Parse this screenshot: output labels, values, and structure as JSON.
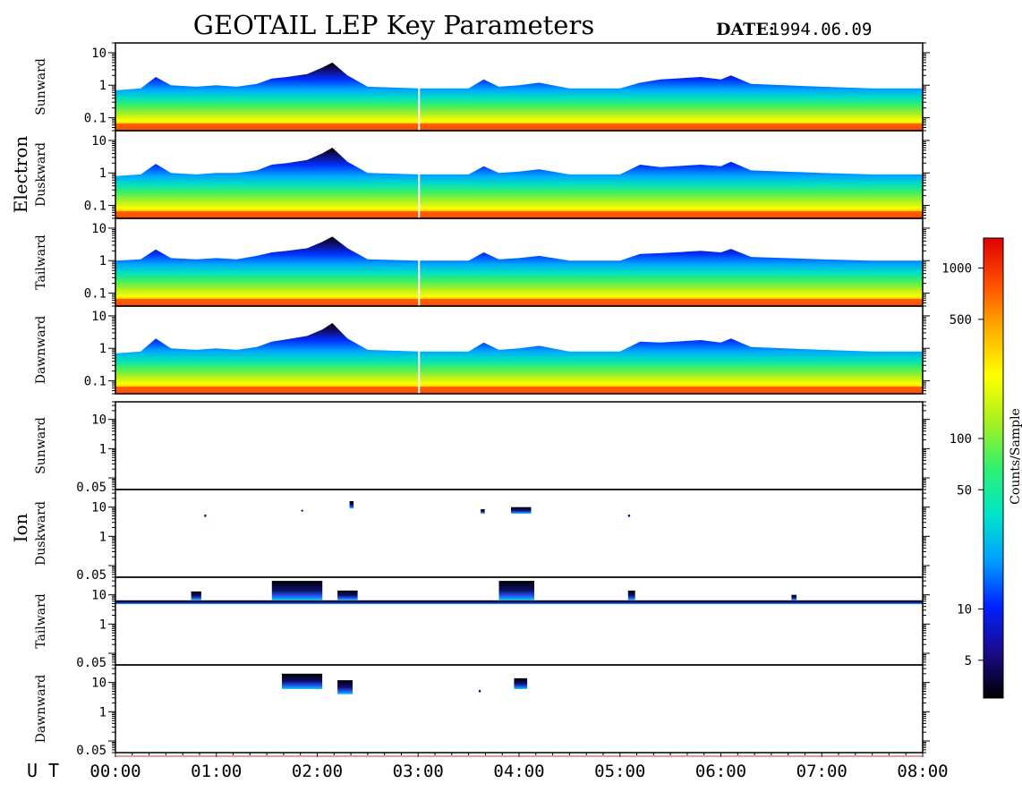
{
  "title": "GEOTAIL LEP Key Parameters",
  "date": {
    "label": "DATE:",
    "value": "1994.06.09"
  },
  "colorbar": {
    "label": "Counts/Sample",
    "ticks": [
      "1000",
      "500",
      "100",
      "50",
      "10",
      "5"
    ],
    "tick_values": [
      1000,
      500,
      100,
      50,
      10,
      5
    ],
    "range": [
      3,
      1500
    ],
    "scale": "log",
    "colors": [
      "#000000",
      "#1a0a8c",
      "#0022ff",
      "#00a0ff",
      "#00e6c8",
      "#30f070",
      "#a8f020",
      "#ffff00",
      "#ffb000",
      "#ff5000",
      "#e00000"
    ]
  },
  "xaxis": {
    "label": "U T",
    "ticks": [
      "00:00",
      "01:00",
      "02:00",
      "03:00",
      "04:00",
      "05:00",
      "06:00",
      "07:00",
      "08:00"
    ],
    "range_hours": [
      0,
      8
    ]
  },
  "groups": [
    {
      "name": "Electron"
    },
    {
      "name": "Ion"
    }
  ],
  "chart_data": [
    {
      "type": "heatmap",
      "group": "Electron",
      "name": "Sunward",
      "ylabels": [
        "10",
        "1",
        "0.1"
      ],
      "yticks": [
        10,
        1,
        0.1
      ],
      "ylim": [
        0.04,
        20
      ],
      "yscale": "log",
      "envelope_hours": [
        0,
        0.25,
        0.4,
        0.55,
        0.8,
        1.0,
        1.2,
        1.4,
        1.55,
        1.7,
        1.9,
        2.05,
        2.15,
        2.3,
        2.5,
        3.0,
        3.15,
        3.5,
        3.65,
        3.8,
        4.0,
        4.2,
        4.5,
        5.0,
        5.2,
        5.4,
        5.8,
        6.0,
        6.1,
        6.3,
        7.0,
        7.5,
        8.0
      ],
      "envelope_upper": [
        0.7,
        0.8,
        1.8,
        1.0,
        0.9,
        1.0,
        0.9,
        1.1,
        1.6,
        1.8,
        2.2,
        3.5,
        5.0,
        2.0,
        0.9,
        0.8,
        0.8,
        0.8,
        1.5,
        0.9,
        1.0,
        1.2,
        0.8,
        0.8,
        1.2,
        1.5,
        1.8,
        1.5,
        2.0,
        1.1,
        0.9,
        0.8,
        0.8
      ]
    },
    {
      "type": "heatmap",
      "group": "Electron",
      "name": "Duskward",
      "ylabels": [
        "10",
        "1",
        "0.1"
      ],
      "yticks": [
        10,
        1,
        0.1
      ],
      "ylim": [
        0.04,
        20
      ],
      "yscale": "log",
      "envelope_hours": [
        0,
        0.25,
        0.4,
        0.55,
        0.8,
        1.0,
        1.2,
        1.4,
        1.55,
        1.7,
        1.9,
        2.05,
        2.15,
        2.3,
        2.5,
        3.0,
        3.15,
        3.5,
        3.65,
        3.8,
        4.0,
        4.2,
        4.5,
        5.0,
        5.2,
        5.4,
        5.8,
        6.0,
        6.1,
        6.3,
        7.0,
        7.5,
        8.0
      ],
      "envelope_upper": [
        0.8,
        0.9,
        1.9,
        1.0,
        0.9,
        1.0,
        1.0,
        1.2,
        1.8,
        2.0,
        2.5,
        4.0,
        6.0,
        2.2,
        1.0,
        0.9,
        0.9,
        0.9,
        1.6,
        1.0,
        1.1,
        1.3,
        0.9,
        0.9,
        1.8,
        1.5,
        1.8,
        1.6,
        2.2,
        1.2,
        1.0,
        0.9,
        0.9
      ]
    },
    {
      "type": "heatmap",
      "group": "Electron",
      "name": "Tailward",
      "ylabels": [
        "10",
        "1",
        "0.1"
      ],
      "yticks": [
        10,
        1,
        0.1
      ],
      "ylim": [
        0.04,
        20
      ],
      "yscale": "log",
      "envelope_hours": [
        0,
        0.25,
        0.4,
        0.55,
        0.8,
        1.0,
        1.2,
        1.4,
        1.55,
        1.7,
        1.9,
        2.05,
        2.15,
        2.3,
        2.5,
        3.0,
        3.15,
        3.5,
        3.65,
        3.8,
        4.0,
        4.2,
        4.5,
        5.0,
        5.2,
        5.4,
        5.8,
        6.0,
        6.1,
        6.3,
        7.0,
        7.5,
        8.0
      ],
      "envelope_upper": [
        1.0,
        1.1,
        2.2,
        1.2,
        1.1,
        1.2,
        1.1,
        1.4,
        1.8,
        2.0,
        2.4,
        3.8,
        5.5,
        2.4,
        1.1,
        1.0,
        1.0,
        1.0,
        1.8,
        1.1,
        1.2,
        1.4,
        1.0,
        1.0,
        1.6,
        1.7,
        2.0,
        1.8,
        2.3,
        1.3,
        1.1,
        1.0,
        1.0
      ]
    },
    {
      "type": "heatmap",
      "group": "Electron",
      "name": "Dawnward",
      "ylabels": [
        "10",
        "1",
        "0.1"
      ],
      "yticks": [
        10,
        1,
        0.1
      ],
      "ylim": [
        0.04,
        20
      ],
      "yscale": "log",
      "envelope_hours": [
        0,
        0.25,
        0.4,
        0.55,
        0.8,
        1.0,
        1.2,
        1.4,
        1.55,
        1.7,
        1.9,
        2.05,
        2.15,
        2.3,
        2.5,
        3.0,
        3.15,
        3.5,
        3.65,
        3.8,
        4.0,
        4.2,
        4.5,
        5.0,
        5.2,
        5.4,
        5.8,
        6.0,
        6.1,
        6.3,
        7.0,
        7.5,
        8.0
      ],
      "envelope_upper": [
        0.7,
        0.8,
        2.0,
        1.0,
        0.9,
        1.0,
        0.9,
        1.1,
        1.6,
        1.9,
        2.4,
        3.8,
        6.0,
        2.0,
        0.9,
        0.8,
        0.8,
        0.8,
        1.5,
        0.9,
        1.0,
        1.2,
        0.8,
        0.8,
        1.6,
        1.5,
        1.8,
        1.5,
        2.0,
        1.1,
        0.9,
        0.8,
        0.8
      ]
    },
    {
      "type": "heatmap",
      "group": "Ion",
      "name": "Sunward",
      "ylabels": [
        "10",
        "1",
        "0.05"
      ],
      "yticks": [
        10,
        1,
        0.05
      ],
      "ylim": [
        0.04,
        40
      ],
      "yscale": "log",
      "bands": []
    },
    {
      "type": "heatmap",
      "group": "Ion",
      "name": "Duskward",
      "ylabels": [
        "10",
        "1",
        "0.05"
      ],
      "yticks": [
        10,
        1,
        0.05
      ],
      "ylim": [
        0.04,
        40
      ],
      "yscale": "log",
      "bands": [
        {
          "x0": 0.88,
          "x1": 0.9,
          "y0": 4.5,
          "y1": 5.5
        },
        {
          "x0": 1.84,
          "x1": 1.86,
          "y0": 7,
          "y1": 8
        },
        {
          "x0": 2.32,
          "x1": 2.36,
          "y0": 9,
          "y1": 16
        },
        {
          "x0": 3.62,
          "x1": 3.66,
          "y0": 6,
          "y1": 8.5
        },
        {
          "x0": 3.92,
          "x1": 4.12,
          "y0": 6,
          "y1": 10
        },
        {
          "x0": 5.08,
          "x1": 5.1,
          "y0": 4.5,
          "y1": 5.5
        }
      ]
    },
    {
      "type": "heatmap",
      "group": "Ion",
      "name": "Tailward",
      "ylabels": [
        "10",
        "1",
        "0.05"
      ],
      "yticks": [
        10,
        1,
        0.05
      ],
      "ylim": [
        0.04,
        40
      ],
      "yscale": "log",
      "bands": [
        {
          "x0": 0.0,
          "x1": 8.0,
          "y0": 4.8,
          "y1": 6.5
        },
        {
          "x0": 0.75,
          "x1": 0.85,
          "y0": 6.5,
          "y1": 13
        },
        {
          "x0": 1.55,
          "x1": 2.05,
          "y0": 6.5,
          "y1": 30
        },
        {
          "x0": 2.2,
          "x1": 2.4,
          "y0": 6.5,
          "y1": 14
        },
        {
          "x0": 3.8,
          "x1": 4.15,
          "y0": 6.5,
          "y1": 30
        },
        {
          "x0": 5.08,
          "x1": 5.15,
          "y0": 6.5,
          "y1": 14
        },
        {
          "x0": 6.7,
          "x1": 6.75,
          "y0": 6.5,
          "y1": 10
        }
      ]
    },
    {
      "type": "heatmap",
      "group": "Ion",
      "name": "Dawnward",
      "ylabels": [
        "10",
        "1",
        "0.05"
      ],
      "yticks": [
        10,
        1,
        0.05
      ],
      "ylim": [
        0.04,
        40
      ],
      "yscale": "log",
      "bands": [
        {
          "x0": 1.65,
          "x1": 2.05,
          "y0": 6,
          "y1": 20
        },
        {
          "x0": 2.2,
          "x1": 2.35,
          "y0": 4,
          "y1": 12
        },
        {
          "x0": 3.6,
          "x1": 3.62,
          "y0": 4.5,
          "y1": 5.5
        },
        {
          "x0": 3.95,
          "x1": 4.08,
          "y0": 6,
          "y1": 14
        }
      ]
    }
  ]
}
